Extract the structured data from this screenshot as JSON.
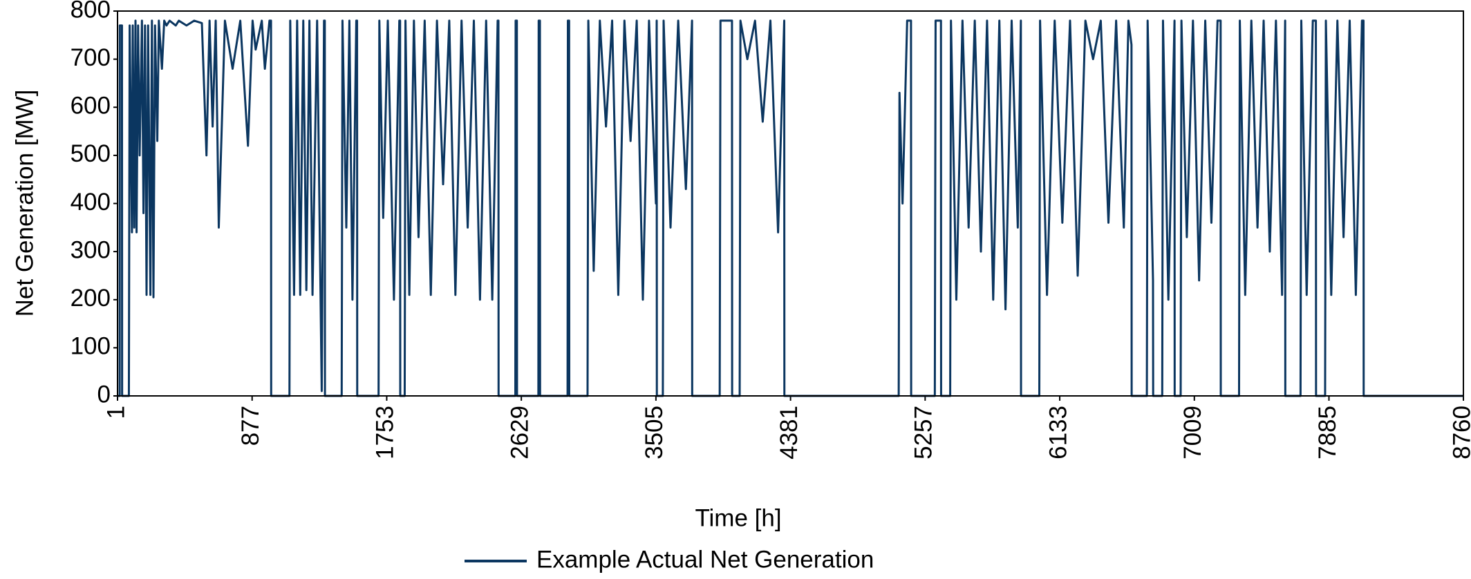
{
  "chart_data": {
    "type": "line",
    "xlabel": "Time [h]",
    "ylabel": "Net Generation [MW]",
    "xlim": [
      1,
      8760
    ],
    "xticks": [
      1,
      877,
      1753,
      2629,
      3505,
      4381,
      5257,
      6133,
      7009,
      7885,
      8760
    ],
    "ylim": [
      0,
      800
    ],
    "yticks": [
      0,
      100,
      200,
      300,
      400,
      500,
      600,
      700,
      800
    ],
    "grid": false,
    "legend": "bottom",
    "x": [
      1,
      15,
      16,
      30,
      31,
      75,
      80,
      95,
      100,
      110,
      118,
      125,
      135,
      145,
      160,
      170,
      180,
      190,
      200,
      215,
      225,
      235,
      245,
      260,
      270,
      290,
      305,
      320,
      340,
      360,
      380,
      400,
      450,
      500,
      550,
      580,
      600,
      620,
      640,
      660,
      700,
      750,
      800,
      850,
      880,
      900,
      940,
      960,
      990,
      1000,
      1001,
      1120,
      1125,
      1150,
      1170,
      1190,
      1210,
      1230,
      1250,
      1270,
      1300,
      1330,
      1345,
      1350,
      1351,
      1460,
      1465,
      1490,
      1510,
      1530,
      1555,
      1560,
      1561,
      1700,
      1705,
      1730,
      1760,
      1800,
      1835,
      1840,
      1841,
      1870,
      1875,
      1900,
      1930,
      1960,
      2000,
      2040,
      2080,
      2120,
      2160,
      2200,
      2240,
      2280,
      2320,
      2360,
      2400,
      2440,
      2475,
      2480,
      2481,
      2590,
      2592,
      2600,
      2601,
      2740,
      2742,
      2750,
      2751,
      2930,
      2932,
      2940,
      2941,
      3060,
      3065,
      3100,
      3140,
      3180,
      3220,
      3260,
      3300,
      3340,
      3380,
      3420,
      3460,
      3505,
      3510,
      3511,
      3550,
      3555,
      3600,
      3650,
      3700,
      3740,
      3741,
      3920,
      3925,
      3960,
      4000,
      4001,
      4050,
      4055,
      4100,
      4150,
      4200,
      4250,
      4300,
      4340,
      4341,
      5085,
      5090,
      5110,
      5140,
      5165,
      5166,
      5320,
      5325,
      5360,
      5361,
      5420,
      5425,
      5460,
      5500,
      5540,
      5580,
      5620,
      5660,
      5700,
      5740,
      5780,
      5820,
      5860,
      5880,
      5881,
      6000,
      6005,
      6050,
      6100,
      6150,
      6200,
      6250,
      6300,
      6350,
      6400,
      6450,
      6500,
      6550,
      6580,
      6600,
      6601,
      6700,
      6705,
      6740,
      6741,
      6800,
      6805,
      6840,
      6880,
      6881,
      6920,
      6925,
      6960,
      7000,
      7040,
      7080,
      7120,
      7160,
      7180,
      7181,
      7300,
      7305,
      7340,
      7380,
      7420,
      7460,
      7500,
      7540,
      7580,
      7600,
      7601,
      7700,
      7705,
      7740,
      7780,
      7800,
      7801,
      7860,
      7865,
      7900,
      7940,
      7980,
      8020,
      8060,
      8100,
      8110,
      8111,
      8760
    ],
    "series": [
      {
        "name": "Example Actual Net Generation",
        "color": "#0b3660",
        "values": [
          0,
          0,
          770,
          770,
          0,
          0,
          770,
          340,
          770,
          350,
          780,
          340,
          770,
          500,
          780,
          380,
          770,
          210,
          770,
          210,
          780,
          205,
          770,
          530,
          780,
          680,
          780,
          770,
          780,
          775,
          770,
          780,
          770,
          780,
          775,
          500,
          780,
          560,
          780,
          350,
          780,
          680,
          780,
          520,
          780,
          720,
          780,
          680,
          780,
          780,
          0,
          0,
          780,
          210,
          780,
          210,
          780,
          220,
          780,
          210,
          780,
          10,
          780,
          780,
          0,
          0,
          780,
          350,
          780,
          200,
          780,
          780,
          0,
          0,
          780,
          370,
          780,
          200,
          780,
          780,
          0,
          0,
          780,
          210,
          780,
          330,
          780,
          210,
          780,
          440,
          780,
          210,
          780,
          350,
          780,
          200,
          780,
          200,
          780,
          780,
          0,
          0,
          780,
          780,
          0,
          0,
          780,
          780,
          0,
          0,
          780,
          780,
          0,
          0,
          780,
          260,
          780,
          560,
          780,
          210,
          780,
          530,
          780,
          200,
          780,
          400,
          780,
          0,
          0,
          780,
          350,
          780,
          430,
          780,
          0,
          0,
          780,
          780,
          780,
          0,
          0,
          780,
          700,
          780,
          570,
          780,
          340,
          780,
          0,
          0,
          630,
          400,
          780,
          780,
          0,
          0,
          780,
          780,
          0,
          0,
          780,
          200,
          780,
          350,
          780,
          300,
          780,
          200,
          780,
          180,
          780,
          350,
          780,
          0,
          0,
          780,
          210,
          780,
          360,
          780,
          250,
          780,
          700,
          780,
          360,
          780,
          350,
          780,
          730,
          0,
          0,
          780,
          240,
          0,
          0,
          780,
          200,
          780,
          0,
          0,
          780,
          330,
          780,
          240,
          780,
          360,
          780,
          780,
          0,
          0,
          780,
          210,
          780,
          350,
          780,
          300,
          780,
          210,
          780,
          0,
          0,
          780,
          210,
          780,
          780,
          0,
          0,
          780,
          210,
          780,
          330,
          780,
          210,
          780,
          780,
          0,
          0
        ]
      }
    ]
  }
}
